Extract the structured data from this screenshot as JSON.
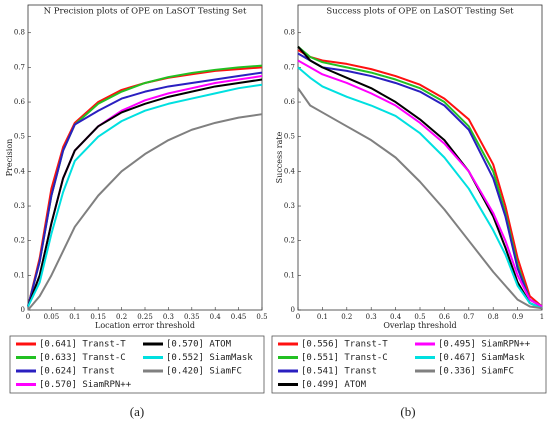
{
  "chart_data": [
    {
      "type": "line",
      "title": "N Precision plots of OPE on LaSOT Testing Set",
      "x_label": "Location error threshold",
      "y_label": "Precision",
      "caption": "(a)",
      "x": [
        0,
        0.025,
        0.05,
        0.075,
        0.1,
        0.15,
        0.2,
        0.25,
        0.3,
        0.35,
        0.4,
        0.45,
        0.5
      ],
      "xlim": [
        0,
        0.5
      ],
      "xticks": [
        0,
        0.05,
        0.1,
        0.15,
        0.2,
        0.25,
        0.3,
        0.35,
        0.4,
        0.45,
        0.5
      ],
      "ylim": [
        0,
        0.88
      ],
      "yticks": [
        0,
        0.1,
        0.2,
        0.3,
        0.4,
        0.5,
        0.6,
        0.7,
        0.8
      ],
      "series": [
        {
          "name": "[0.641] Transt-T",
          "color": "#ff1010",
          "values": [
            0.01,
            0.15,
            0.35,
            0.47,
            0.54,
            0.6,
            0.635,
            0.655,
            0.67,
            0.68,
            0.69,
            0.695,
            0.7
          ]
        },
        {
          "name": "[0.633] Transt-C",
          "color": "#22c022",
          "values": [
            0.01,
            0.14,
            0.33,
            0.46,
            0.535,
            0.595,
            0.63,
            0.655,
            0.672,
            0.684,
            0.693,
            0.7,
            0.705
          ]
        },
        {
          "name": "[0.624] Transt",
          "color": "#2a1fc0",
          "values": [
            0.01,
            0.14,
            0.33,
            0.46,
            0.535,
            0.575,
            0.61,
            0.63,
            0.645,
            0.655,
            0.665,
            0.675,
            0.685
          ]
        },
        {
          "name": "[0.570] SiamRPN++",
          "color": "#ff00ff",
          "values": [
            0.01,
            0.1,
            0.25,
            0.38,
            0.46,
            0.53,
            0.575,
            0.605,
            0.625,
            0.64,
            0.655,
            0.665,
            0.675
          ]
        },
        {
          "name": "[0.570] ATOM",
          "color": "#000000",
          "values": [
            0.01,
            0.1,
            0.25,
            0.38,
            0.46,
            0.53,
            0.57,
            0.595,
            0.615,
            0.63,
            0.645,
            0.655,
            0.665
          ]
        },
        {
          "name": "[0.552] SiamMask",
          "color": "#00e0e0",
          "values": [
            0.01,
            0.08,
            0.22,
            0.34,
            0.43,
            0.5,
            0.545,
            0.575,
            0.595,
            0.61,
            0.625,
            0.64,
            0.65
          ]
        },
        {
          "name": "[0.420] SiamFC",
          "color": "#808080",
          "values": [
            0,
            0.04,
            0.1,
            0.17,
            0.24,
            0.33,
            0.4,
            0.45,
            0.49,
            0.52,
            0.54,
            0.555,
            0.565
          ]
        }
      ]
    },
    {
      "type": "line",
      "title": "Success plots of OPE on LaSOT Testing Set",
      "x_label": "Overlap threshold",
      "y_label": "Success rate",
      "caption": "(b)",
      "x": [
        0,
        0.05,
        0.1,
        0.2,
        0.3,
        0.4,
        0.5,
        0.6,
        0.7,
        0.8,
        0.85,
        0.9,
        0.95,
        1
      ],
      "xlim": [
        0,
        1
      ],
      "xticks": [
        0,
        0.1,
        0.2,
        0.3,
        0.4,
        0.5,
        0.6,
        0.7,
        0.8,
        0.9,
        1
      ],
      "ylim": [
        0,
        0.88
      ],
      "yticks": [
        0,
        0.1,
        0.2,
        0.3,
        0.4,
        0.5,
        0.6,
        0.7,
        0.8
      ],
      "series": [
        {
          "name": "[0.556] Transt-T",
          "color": "#ff1010",
          "values": [
            0.75,
            0.73,
            0.72,
            0.71,
            0.695,
            0.675,
            0.65,
            0.61,
            0.55,
            0.42,
            0.3,
            0.15,
            0.04,
            0.01
          ]
        },
        {
          "name": "[0.551] Transt-C",
          "color": "#22c022",
          "values": [
            0.76,
            0.73,
            0.715,
            0.7,
            0.685,
            0.665,
            0.64,
            0.6,
            0.53,
            0.4,
            0.28,
            0.13,
            0.03,
            0.01
          ]
        },
        {
          "name": "[0.541] Transt",
          "color": "#2a1fc0",
          "values": [
            0.74,
            0.72,
            0.7,
            0.69,
            0.675,
            0.655,
            0.63,
            0.59,
            0.52,
            0.38,
            0.27,
            0.12,
            0.03,
            0.01
          ]
        },
        {
          "name": "[0.499] ATOM",
          "color": "#000000",
          "values": [
            0.76,
            0.72,
            0.7,
            0.67,
            0.64,
            0.6,
            0.55,
            0.49,
            0.4,
            0.27,
            0.18,
            0.08,
            0.02,
            0.005
          ]
        },
        {
          "name": "[0.495] SiamRPN++",
          "color": "#ff00ff",
          "values": [
            0.72,
            0.7,
            0.68,
            0.655,
            0.625,
            0.59,
            0.54,
            0.48,
            0.4,
            0.28,
            0.2,
            0.1,
            0.03,
            0.01
          ]
        },
        {
          "name": "[0.467] SiamMask",
          "color": "#00e0e0",
          "values": [
            0.7,
            0.67,
            0.645,
            0.615,
            0.59,
            0.56,
            0.51,
            0.44,
            0.35,
            0.23,
            0.16,
            0.07,
            0.02,
            0.005
          ]
        },
        {
          "name": "[0.336] SiamFC",
          "color": "#808080",
          "values": [
            0.64,
            0.59,
            0.57,
            0.53,
            0.49,
            0.44,
            0.37,
            0.29,
            0.2,
            0.11,
            0.07,
            0.03,
            0.01,
            0.005
          ]
        }
      ]
    }
  ]
}
